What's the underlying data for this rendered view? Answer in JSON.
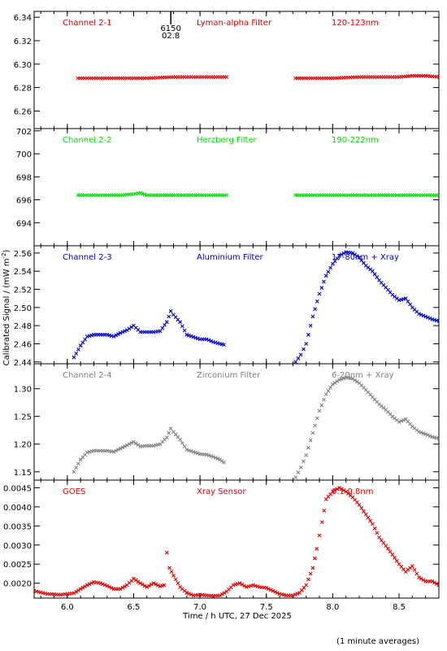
{
  "chart_data": [
    {
      "type": "scatter",
      "panel_labels": [
        "Channel 2-1",
        "Lyman-alpha Filter",
        "120-123nm"
      ],
      "color": "#e00000",
      "ylim": [
        6.245,
        6.345
      ],
      "yticks": [
        "6.26",
        "6.28",
        "6.30",
        "6.32",
        "6.34"
      ],
      "series": [
        {
          "x": [
            6.08,
            6.2,
            6.4,
            6.6,
            6.8,
            6.9,
            7.0,
            7.1,
            7.2
          ],
          "y": [
            6.288,
            6.288,
            6.288,
            6.288,
            6.289,
            6.289,
            6.289,
            6.289,
            6.289
          ]
        },
        {
          "x": [
            7.72,
            7.8,
            8.0,
            8.2,
            8.4,
            8.5,
            8.6,
            8.7,
            8.8
          ],
          "y": [
            6.288,
            6.288,
            6.288,
            6.289,
            6.289,
            6.289,
            6.29,
            6.29,
            6.289
          ]
        }
      ],
      "annotation": {
        "text": [
          "6150",
          "02.8"
        ],
        "x": 6.78
      }
    },
    {
      "type": "scatter",
      "panel_labels": [
        "Channel 2-2",
        "Herzberg Filter",
        "190-222nm"
      ],
      "color": "#00dd00",
      "ylim": [
        692.0,
        702.2
      ],
      "yticks": [
        "694",
        "696",
        "698",
        "700",
        "702"
      ],
      "series": [
        {
          "x": [
            6.08,
            6.2,
            6.4,
            6.5,
            6.55,
            6.6,
            6.8,
            7.0,
            7.2
          ],
          "y": [
            696.4,
            696.4,
            696.4,
            696.5,
            696.6,
            696.4,
            696.4,
            696.4,
            696.4
          ]
        },
        {
          "x": [
            7.72,
            7.8,
            8.0,
            8.2,
            8.4,
            8.6,
            8.8
          ],
          "y": [
            696.4,
            696.4,
            696.4,
            696.4,
            696.4,
            696.4,
            696.4
          ]
        }
      ]
    },
    {
      "type": "scatter",
      "panel_labels": [
        "Channel 2-3",
        "Aluminium Filter",
        "17-80nm + Xray"
      ],
      "color": "#0000cc",
      "ylim": [
        2.438,
        2.568
      ],
      "yticks": [
        "2.44",
        "2.46",
        "2.48",
        "2.50",
        "2.52",
        "2.54",
        "2.56"
      ],
      "series": [
        {
          "x": [
            6.05,
            6.1,
            6.15,
            6.2,
            6.3,
            6.35,
            6.4,
            6.45,
            6.5,
            6.55,
            6.6,
            6.65,
            6.7,
            6.75,
            6.78,
            6.8,
            6.85,
            6.9,
            7.0,
            7.05,
            7.1,
            7.15,
            7.18
          ],
          "y": [
            2.445,
            2.458,
            2.468,
            2.47,
            2.47,
            2.468,
            2.472,
            2.475,
            2.48,
            2.473,
            2.473,
            2.473,
            2.474,
            2.484,
            2.496,
            2.492,
            2.484,
            2.47,
            2.465,
            2.465,
            2.462,
            2.46,
            2.459
          ]
        },
        {
          "x": [
            7.72,
            7.76,
            7.8,
            7.85,
            7.9,
            7.95,
            8.0,
            8.05,
            8.1,
            8.15,
            8.2,
            8.25,
            8.3,
            8.35,
            8.4,
            8.45,
            8.5,
            8.55,
            8.6,
            8.65,
            8.7,
            8.75,
            8.8
          ],
          "y": [
            2.44,
            2.448,
            2.46,
            2.49,
            2.515,
            2.535,
            2.548,
            2.557,
            2.561,
            2.56,
            2.555,
            2.546,
            2.54,
            2.53,
            2.522,
            2.514,
            2.508,
            2.51,
            2.5,
            2.493,
            2.49,
            2.487,
            2.485
          ]
        }
      ]
    },
    {
      "type": "scatter",
      "panel_labels": [
        "Channel 2-4",
        "Zirconium Filter",
        "6-20nm + Xray"
      ],
      "color": "#808080",
      "ylim": [
        1.135,
        1.345
      ],
      "yticks": [
        "1.15",
        "1.20",
        "1.25",
        "1.30"
      ],
      "series": [
        {
          "x": [
            6.05,
            6.1,
            6.15,
            6.2,
            6.3,
            6.35,
            6.4,
            6.45,
            6.5,
            6.55,
            6.6,
            6.65,
            6.7,
            6.75,
            6.78,
            6.8,
            6.85,
            6.9,
            7.0,
            7.05,
            7.1,
            7.15,
            7.18
          ],
          "y": [
            1.15,
            1.172,
            1.185,
            1.188,
            1.188,
            1.186,
            1.192,
            1.198,
            1.204,
            1.196,
            1.197,
            1.197,
            1.2,
            1.212,
            1.228,
            1.222,
            1.208,
            1.19,
            1.182,
            1.181,
            1.177,
            1.172,
            1.167
          ]
        },
        {
          "x": [
            7.72,
            7.76,
            7.8,
            7.85,
            7.9,
            7.95,
            8.0,
            8.05,
            8.1,
            8.15,
            8.2,
            8.25,
            8.3,
            8.35,
            8.4,
            8.45,
            8.5,
            8.55,
            8.6,
            8.65,
            8.7,
            8.75,
            8.8
          ],
          "y": [
            1.14,
            1.158,
            1.18,
            1.22,
            1.26,
            1.29,
            1.308,
            1.316,
            1.32,
            1.318,
            1.31,
            1.298,
            1.285,
            1.272,
            1.262,
            1.25,
            1.24,
            1.245,
            1.232,
            1.222,
            1.218,
            1.213,
            1.21
          ]
        }
      ]
    },
    {
      "type": "scatter",
      "panel_labels": [
        "GOES",
        "Xray Sensor",
        "0.1-0.8nm"
      ],
      "color": "#e00000",
      "ylim": [
        0.00161,
        0.0047
      ],
      "yticks": [
        "0.0020",
        "0.0025",
        "0.0030",
        "0.0035",
        "0.0040",
        "0.0045"
      ],
      "xlim": [
        5.75,
        8.8
      ],
      "xticks": [
        "6.0",
        "6.5",
        "7.0",
        "7.5",
        "8.0",
        "8.5"
      ],
      "xlabel": "Time / h UTC, 27 Dec 2025",
      "series": [
        {
          "x": [
            5.75,
            5.85,
            5.95,
            6.05,
            6.1,
            6.15,
            6.2,
            6.25,
            6.3,
            6.35,
            6.4,
            6.45,
            6.5,
            6.55,
            6.6,
            6.65,
            6.7,
            6.73,
            6.75,
            6.77,
            6.8,
            6.85,
            6.9,
            6.95,
            7.0,
            7.05,
            7.1,
            7.15,
            7.2,
            7.25,
            7.3,
            7.35,
            7.4,
            7.45,
            7.5,
            7.55,
            7.6,
            7.65,
            7.7,
            7.75,
            7.8,
            7.85,
            7.88,
            7.92,
            7.95,
            8.0,
            8.05,
            8.1,
            8.15,
            8.2,
            8.25,
            8.3,
            8.35,
            8.4,
            8.45,
            8.5,
            8.55,
            8.6,
            8.65,
            8.7,
            8.75,
            8.8
          ],
          "y": [
            0.0018,
            0.00172,
            0.0017,
            0.00174,
            0.00185,
            0.00195,
            0.00203,
            0.002,
            0.00193,
            0.00185,
            0.00185,
            0.00195,
            0.00212,
            0.002,
            0.0019,
            0.002,
            0.00192,
            0.00195,
            0.0028,
            0.0024,
            0.0022,
            0.0019,
            0.00175,
            0.00168,
            0.0017,
            0.00168,
            0.00167,
            0.00168,
            0.00178,
            0.00195,
            0.002,
            0.0019,
            0.00195,
            0.0019,
            0.00188,
            0.0018,
            0.00172,
            0.00168,
            0.00168,
            0.00175,
            0.00195,
            0.0024,
            0.0029,
            0.0036,
            0.0042,
            0.0044,
            0.0045,
            0.0044,
            0.00425,
            0.00405,
            0.0038,
            0.00355,
            0.0032,
            0.00298,
            0.00275,
            0.0025,
            0.0023,
            0.00245,
            0.00215,
            0.00205,
            0.00205,
            0.00195
          ]
        }
      ]
    }
  ],
  "ylabel": "Calibrated Signal / (mW m",
  "ylabel_sup": "-2",
  "ylabel_end": ")",
  "footnote": "(1 minute averages)"
}
